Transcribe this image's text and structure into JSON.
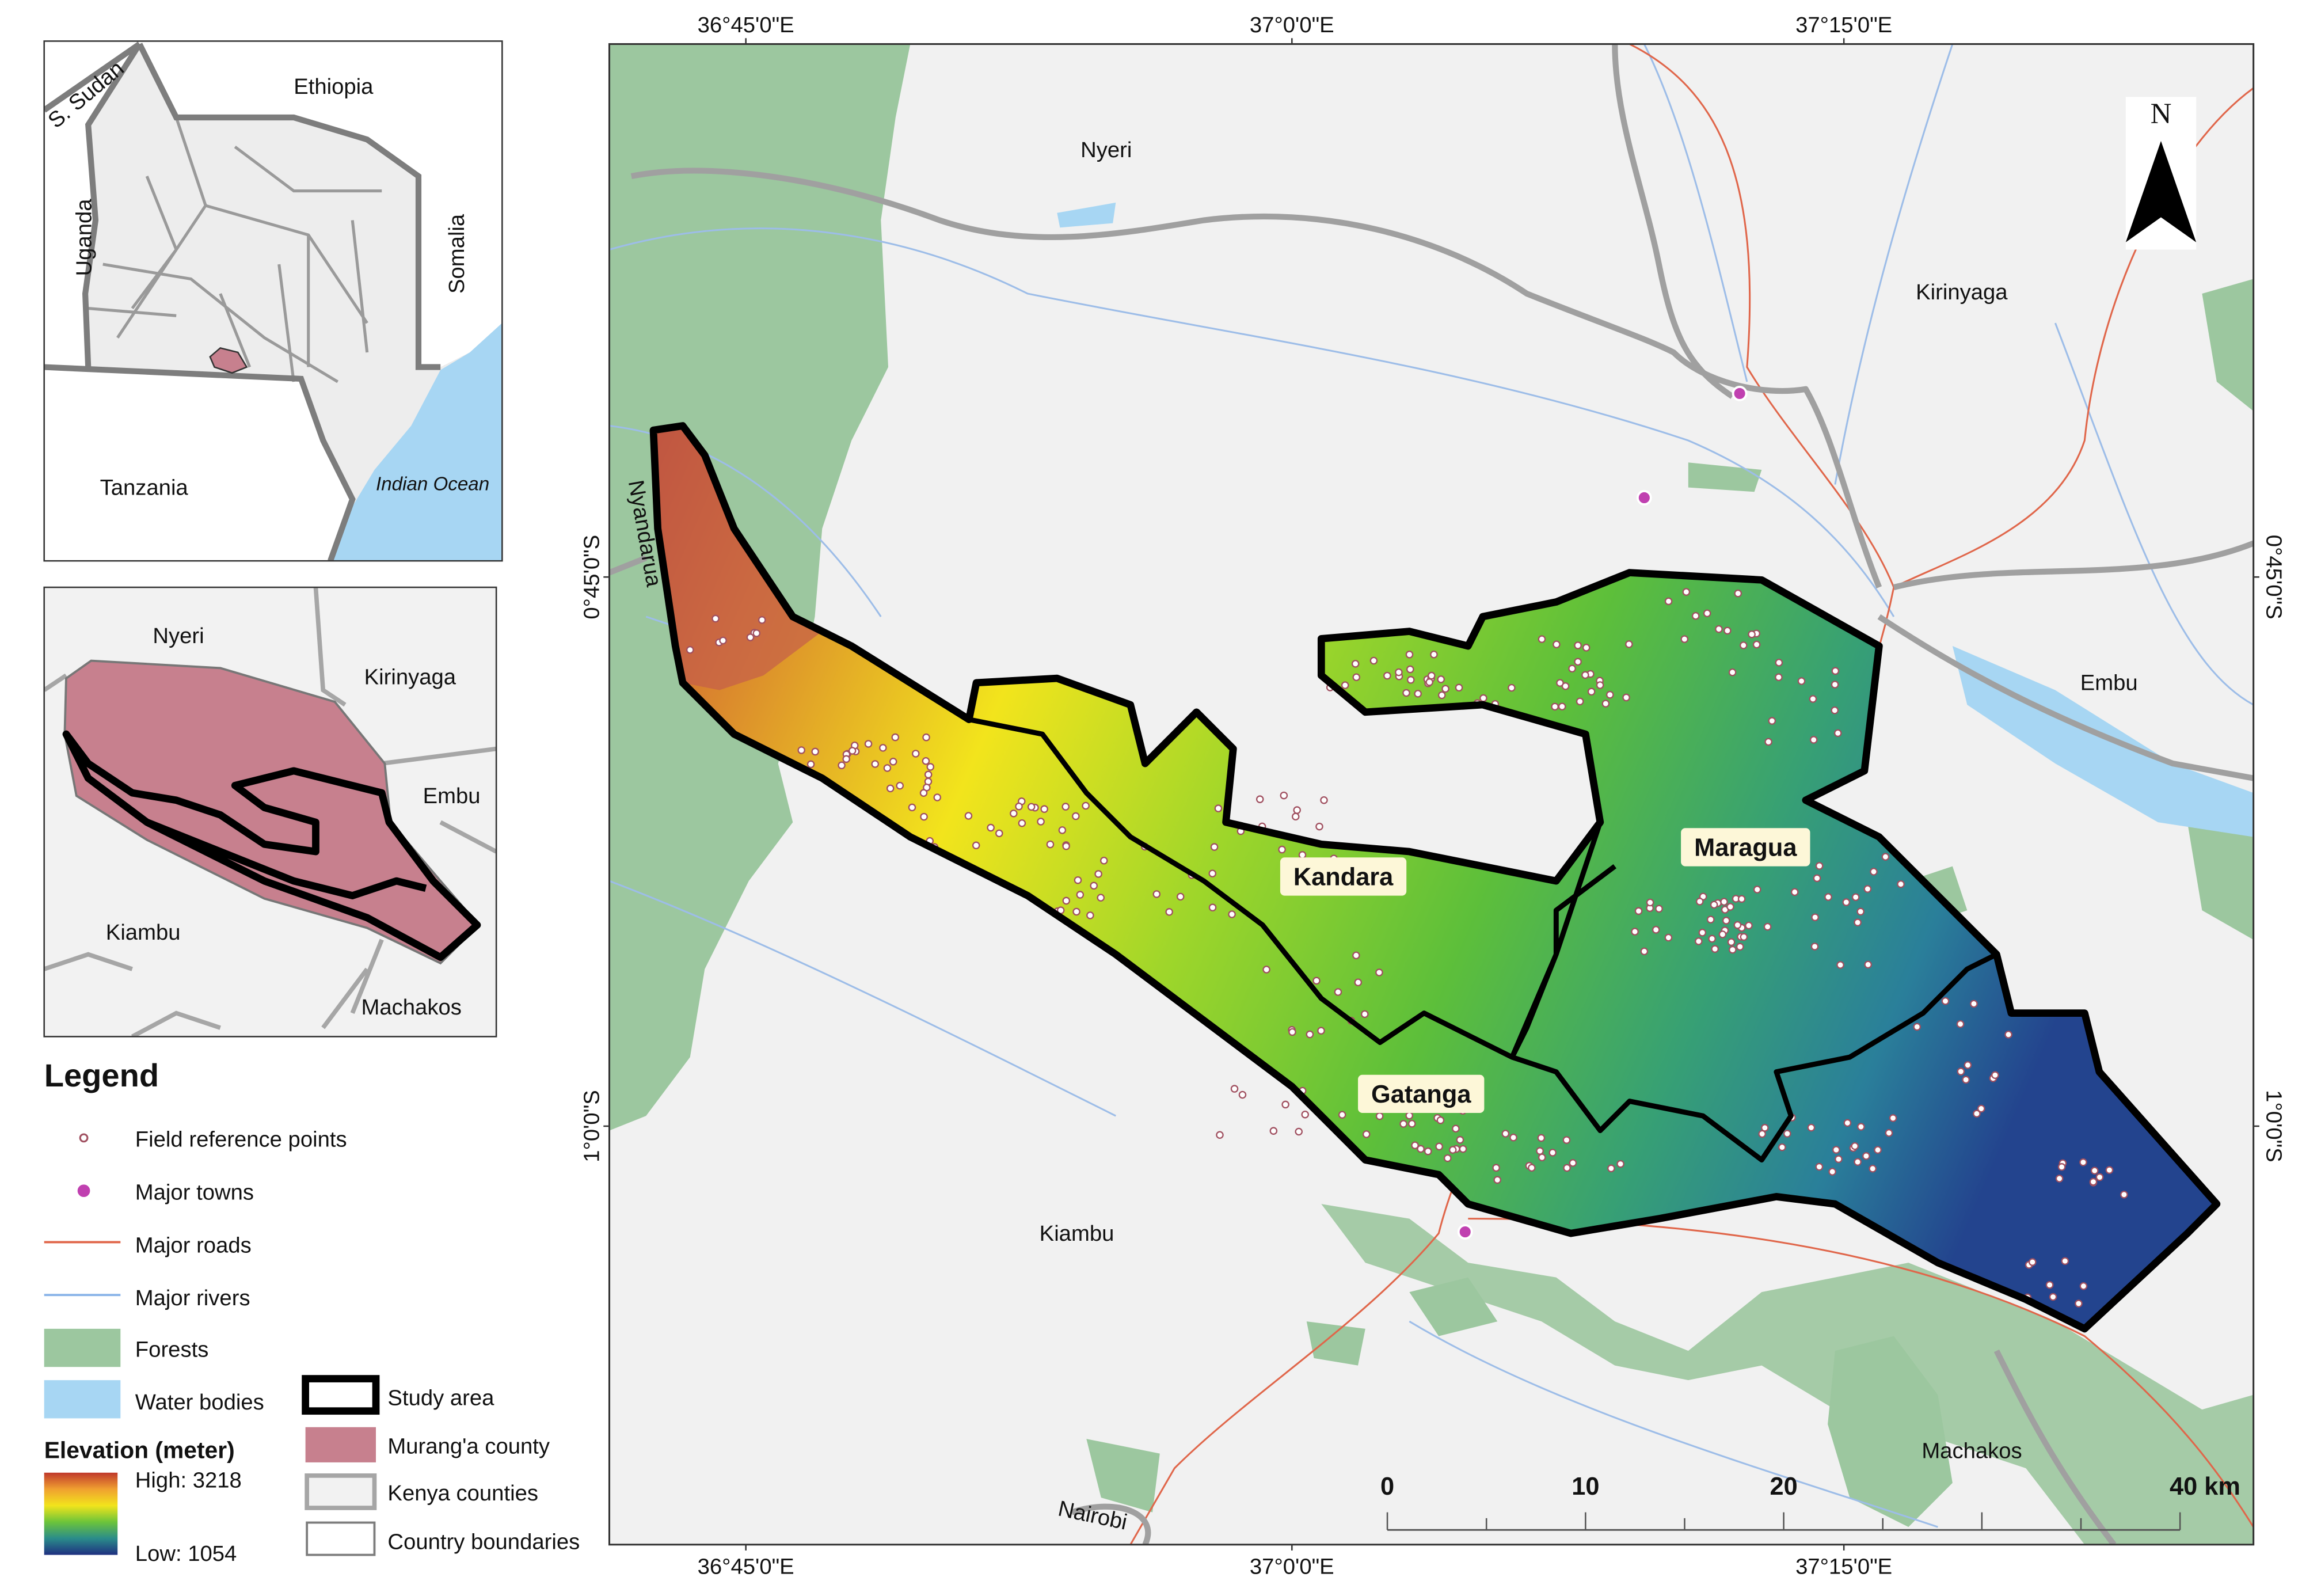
{
  "inset_kenya": {
    "labels": [
      "S. Sudan",
      "Ethiopia",
      "Uganda",
      "Somalia",
      "Tanzania",
      "Indian Ocean"
    ]
  },
  "inset_county": {
    "labels": [
      "Nyeri",
      "Kirinyaga",
      "Embu",
      "Kiambu",
      "Machakos"
    ]
  },
  "legend": {
    "title": "Legend",
    "items": [
      "Field reference points",
      "Major towns",
      "Major roads",
      "Major rivers",
      "Forests",
      "Water bodies",
      "Study area",
      "Murang'a county",
      "Kenya counties",
      "Country boundaries"
    ],
    "elevation": {
      "title": "Elevation (meter)",
      "high": "High: 3218",
      "low": "Low: 1054"
    }
  },
  "map": {
    "longitude_labels": [
      "36°45'0\"E",
      "37°0'0\"E",
      "37°15'0\"E"
    ],
    "latitude_labels": [
      "0°45'0\"S",
      "1°0'0\"S"
    ],
    "places": [
      "Nyeri",
      "Kirinyaga",
      "Embu",
      "Kiambu",
      "Machakos",
      "Nairobi",
      "Nyandarua"
    ],
    "subcounties": [
      "Kandara",
      "Maragua",
      "Gatanga"
    ],
    "north": "N",
    "scale": [
      "0",
      "10",
      "20",
      "40 km"
    ]
  }
}
